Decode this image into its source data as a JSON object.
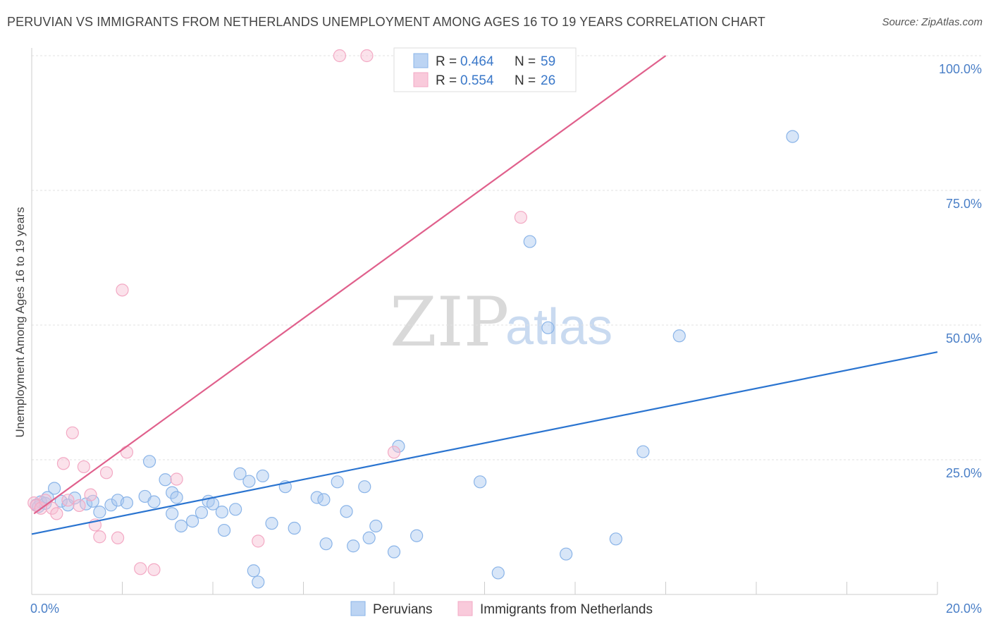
{
  "header": {
    "title": "PERUVIAN VS IMMIGRANTS FROM NETHERLANDS UNEMPLOYMENT AMONG AGES 16 TO 19 YEARS CORRELATION CHART",
    "source": "Source: ZipAtlas.com"
  },
  "watermark": {
    "zip": "ZIP",
    "atlas": "atlas"
  },
  "chart_data": {
    "type": "scatter",
    "title": "PERUVIAN VS IMMIGRANTS FROM NETHERLANDS UNEMPLOYMENT AMONG AGES 16 TO 19 YEARS CORRELATION CHART",
    "xlabel": "",
    "ylabel": "Unemployment Among Ages 16 to 19 years",
    "xlim": [
      0,
      20
    ],
    "ylim": [
      0,
      100
    ],
    "x_tick_labels": [
      "0.0%",
      "20.0%"
    ],
    "y_ticks": [
      25,
      50,
      75,
      100
    ],
    "y_tick_labels": [
      "25.0%",
      "50.0%",
      "75.0%",
      "100.0%"
    ],
    "grid": true,
    "legend_position": "top-center",
    "series": [
      {
        "name": "Peruvians",
        "color": "#8ab4e8",
        "line_color": "#2a74d0",
        "R": "0.464",
        "N": "59",
        "trend": {
          "x": [
            0,
            20
          ],
          "y": [
            11.2,
            45.0
          ]
        },
        "points": [
          {
            "x": 0.1,
            "y": 16.6
          },
          {
            "x": 0.15,
            "y": 16.3
          },
          {
            "x": 0.2,
            "y": 17.2
          },
          {
            "x": 0.3,
            "y": 16.9
          },
          {
            "x": 0.35,
            "y": 18.0
          },
          {
            "x": 0.5,
            "y": 19.7
          },
          {
            "x": 0.65,
            "y": 17.3
          },
          {
            "x": 0.8,
            "y": 16.6
          },
          {
            "x": 0.95,
            "y": 17.9
          },
          {
            "x": 1.2,
            "y": 16.8
          },
          {
            "x": 1.35,
            "y": 17.3
          },
          {
            "x": 1.5,
            "y": 15.3
          },
          {
            "x": 1.75,
            "y": 16.6
          },
          {
            "x": 1.9,
            "y": 17.5
          },
          {
            "x": 2.1,
            "y": 17.0
          },
          {
            "x": 2.5,
            "y": 18.2
          },
          {
            "x": 2.6,
            "y": 24.7
          },
          {
            "x": 2.7,
            "y": 17.2
          },
          {
            "x": 2.95,
            "y": 21.3
          },
          {
            "x": 3.1,
            "y": 18.9
          },
          {
            "x": 3.1,
            "y": 15.0
          },
          {
            "x": 3.2,
            "y": 18.0
          },
          {
            "x": 3.3,
            "y": 12.7
          },
          {
            "x": 3.55,
            "y": 13.6
          },
          {
            "x": 3.75,
            "y": 15.2
          },
          {
            "x": 3.9,
            "y": 17.3
          },
          {
            "x": 4.0,
            "y": 16.8
          },
          {
            "x": 4.2,
            "y": 15.3
          },
          {
            "x": 4.25,
            "y": 11.9
          },
          {
            "x": 4.5,
            "y": 15.8
          },
          {
            "x": 4.6,
            "y": 22.4
          },
          {
            "x": 4.8,
            "y": 21.0
          },
          {
            "x": 4.9,
            "y": 4.4
          },
          {
            "x": 5.0,
            "y": 2.3
          },
          {
            "x": 5.1,
            "y": 22.0
          },
          {
            "x": 5.3,
            "y": 13.2
          },
          {
            "x": 5.6,
            "y": 20.0
          },
          {
            "x": 5.8,
            "y": 12.3
          },
          {
            "x": 6.3,
            "y": 18.0
          },
          {
            "x": 6.45,
            "y": 17.6
          },
          {
            "x": 6.5,
            "y": 9.4
          },
          {
            "x": 6.75,
            "y": 20.9
          },
          {
            "x": 6.95,
            "y": 15.4
          },
          {
            "x": 7.1,
            "y": 9.0
          },
          {
            "x": 7.35,
            "y": 20.0
          },
          {
            "x": 7.45,
            "y": 10.5
          },
          {
            "x": 7.6,
            "y": 12.7
          },
          {
            "x": 8.0,
            "y": 7.9
          },
          {
            "x": 8.1,
            "y": 27.5
          },
          {
            "x": 8.5,
            "y": 10.9
          },
          {
            "x": 9.9,
            "y": 20.9
          },
          {
            "x": 10.3,
            "y": 4.0
          },
          {
            "x": 11.0,
            "y": 65.5
          },
          {
            "x": 11.4,
            "y": 49.5
          },
          {
            "x": 11.8,
            "y": 7.5
          },
          {
            "x": 12.9,
            "y": 10.3
          },
          {
            "x": 13.5,
            "y": 26.5
          },
          {
            "x": 14.3,
            "y": 48.0
          },
          {
            "x": 16.8,
            "y": 85.0
          }
        ]
      },
      {
        "name": "Immigrants from Netherlands",
        "color": "#f3a9c4",
        "line_color": "#e0608c",
        "R": "0.554",
        "N": "26",
        "trend": {
          "x": [
            0.05,
            14.0
          ],
          "y": [
            15.0,
            100.0
          ]
        },
        "points": [
          {
            "x": 0.05,
            "y": 17.0
          },
          {
            "x": 0.1,
            "y": 16.5
          },
          {
            "x": 0.2,
            "y": 16.0
          },
          {
            "x": 0.3,
            "y": 17.5
          },
          {
            "x": 0.45,
            "y": 16.0
          },
          {
            "x": 0.55,
            "y": 15.0
          },
          {
            "x": 0.7,
            "y": 24.3
          },
          {
            "x": 0.8,
            "y": 17.5
          },
          {
            "x": 0.9,
            "y": 30.0
          },
          {
            "x": 1.05,
            "y": 16.5
          },
          {
            "x": 1.15,
            "y": 23.7
          },
          {
            "x": 1.3,
            "y": 18.5
          },
          {
            "x": 1.4,
            "y": 12.9
          },
          {
            "x": 1.5,
            "y": 10.7
          },
          {
            "x": 1.65,
            "y": 22.6
          },
          {
            "x": 1.9,
            "y": 10.5
          },
          {
            "x": 2.0,
            "y": 56.5
          },
          {
            "x": 2.1,
            "y": 26.4
          },
          {
            "x": 2.4,
            "y": 4.8
          },
          {
            "x": 2.7,
            "y": 4.6
          },
          {
            "x": 3.2,
            "y": 21.4
          },
          {
            "x": 5.0,
            "y": 9.9
          },
          {
            "x": 6.8,
            "y": 100.0
          },
          {
            "x": 7.4,
            "y": 100.0
          },
          {
            "x": 8.0,
            "y": 26.4
          },
          {
            "x": 10.8,
            "y": 70.0
          }
        ]
      }
    ]
  },
  "legend": {
    "r_label": "R = ",
    "n_label": "N = ",
    "items": [
      {
        "r": "0.464",
        "n": "59"
      },
      {
        "r": "0.554",
        "n": "26"
      }
    ]
  },
  "bottom_legend": {
    "items": [
      "Peruvians",
      "Immigrants from Netherlands"
    ]
  }
}
